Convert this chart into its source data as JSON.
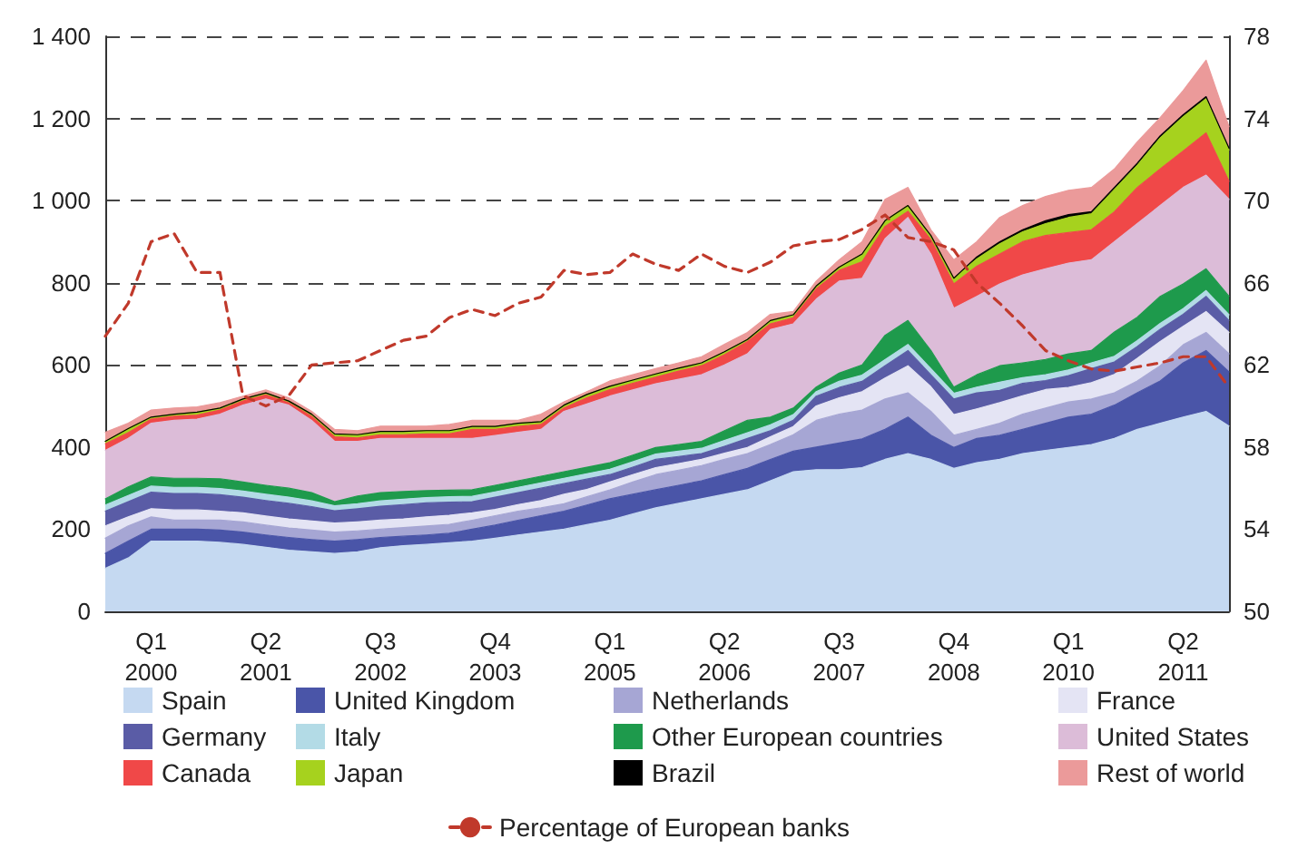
{
  "chart_data": {
    "type": "area",
    "stacked": true,
    "categories": [
      null,
      null,
      "Q1 2000",
      null,
      null,
      null,
      null,
      "Q2 2001",
      null,
      null,
      null,
      null,
      "Q3 2002",
      null,
      null,
      null,
      null,
      "Q4 2003",
      null,
      null,
      null,
      null,
      "Q1 2005",
      null,
      null,
      null,
      null,
      "Q2 2006",
      null,
      null,
      null,
      null,
      "Q3 2007",
      null,
      null,
      null,
      null,
      "Q4 2008",
      null,
      null,
      null,
      null,
      "Q1 2010",
      null,
      null,
      null,
      null,
      "Q2 2011",
      null,
      null
    ],
    "ylim": [
      0,
      1400
    ],
    "yticks": [
      0,
      200,
      400,
      600,
      800,
      {
        "value": 1000,
        "label": "1 000"
      },
      {
        "value": 1200,
        "label": "1 200"
      },
      {
        "value": 1400,
        "label": "1 400"
      }
    ],
    "y2lim": [
      50,
      78
    ],
    "y2ticks": [
      50,
      54,
      58,
      62,
      66,
      70,
      74,
      78
    ],
    "grid": "y",
    "legend": "bottom",
    "series": [
      {
        "name": "Spain",
        "color": "#c5d9f1",
        "values": [
          105,
          130,
          171,
          171,
          171,
          168,
          163,
          156,
          149,
          145,
          141,
          145,
          155,
          160,
          163,
          167,
          171,
          178,
          186,
          193,
          200,
          211,
          222,
          237,
          252,
          263,
          274,
          285,
          296,
          318,
          340,
          345,
          345,
          350,
          370,
          384,
          370,
          348,
          362,
          370,
          384,
          392,
          399,
          406,
          421,
          443,
          458,
          473,
          487,
          451
        ]
      },
      {
        "name": "United Kingdom",
        "color": "#4a55a8",
        "values": [
          36,
          41,
          29,
          29,
          29,
          30,
          30,
          30,
          31,
          30,
          30,
          30,
          25,
          23,
          23,
          23,
          29,
          32,
          36,
          40,
          44,
          48,
          52,
          48,
          44,
          44,
          44,
          48,
          52,
          52,
          50,
          55,
          65,
          70,
          73,
          89,
          59,
          51,
          59,
          59,
          59,
          66,
          74,
          74,
          81,
          89,
          103,
          132,
          148,
          132
        ]
      },
      {
        "name": "Netherlands",
        "color": "#a6a6d4",
        "values": [
          37,
          37,
          30,
          22,
          22,
          24,
          25,
          24,
          23,
          23,
          22,
          21,
          20,
          21,
          22,
          22,
          22,
          23,
          22,
          19,
          18,
          20,
          22,
          30,
          37,
          37,
          37,
          37,
          36,
          36,
          40,
          65,
          70,
          70,
          74,
          59,
          58,
          30,
          22,
          29,
          37,
          37,
          37,
          37,
          30,
          29,
          37,
          44,
          44,
          44
        ]
      },
      {
        "name": "France",
        "color": "#e4e4f4",
        "values": [
          30,
          22,
          20,
          25,
          25,
          22,
          22,
          22,
          22,
          22,
          22,
          22,
          22,
          21,
          22,
          22,
          18,
          15,
          16,
          18,
          23,
          18,
          19,
          18,
          17,
          16,
          15,
          15,
          15,
          19,
          20,
          35,
          40,
          45,
          51,
          66,
          60,
          50,
          50,
          50,
          45,
          45,
          35,
          40,
          45,
          55,
          59,
          45,
          51,
          52
        ]
      },
      {
        "name": "Germany",
        "color": "#5a5ca6",
        "values": [
          36,
          37,
          40,
          40,
          40,
          40,
          38,
          38,
          38,
          35,
          30,
          32,
          34,
          35,
          34,
          32,
          27,
          30,
          29,
          30,
          26,
          25,
          18,
          18,
          20,
          17,
          14,
          17,
          22,
          15,
          15,
          24,
          25,
          25,
          30,
          37,
          29,
          38,
          39,
          30,
          30,
          22,
          29,
          34,
          30,
          29,
          30,
          29,
          37,
          29
        ]
      },
      {
        "name": "Italy",
        "color": "#b3dbe6",
        "values": [
          15,
          15,
          15,
          15,
          15,
          15,
          15,
          15,
          15,
          14,
          12,
          12,
          13,
          13,
          13,
          13,
          13,
          13,
          13,
          13,
          13,
          13,
          13,
          13,
          13,
          13,
          13,
          14,
          14,
          14,
          14,
          11,
          15,
          15,
          15,
          15,
          15,
          14,
          14,
          20,
          14,
          14,
          14,
          14,
          14,
          14,
          14,
          14,
          14,
          14
        ]
      },
      {
        "name": "Other European countries",
        "color": "#1e9a4c",
        "values": [
          15,
          21,
          22,
          22,
          22,
          24,
          22,
          22,
          22,
          20,
          10,
          19,
          20,
          19,
          17,
          16,
          16,
          16,
          16,
          16,
          16,
          16,
          16,
          16,
          16,
          16,
          17,
          24,
          30,
          19,
          16,
          11,
          20,
          25,
          59,
          58,
          44,
          15,
          30,
          40,
          36,
          37,
          39,
          30,
          59,
          57,
          66,
          60,
          53,
          45
        ]
      },
      {
        "name": "United States",
        "color": "#dcbcd8",
        "values": [
          118,
          118,
          131,
          141,
          144,
          157,
          187,
          210,
          202,
          176,
          147,
          133,
          132,
          129,
          127,
          126,
          125,
          121,
          118,
          114,
          147,
          154,
          162,
          159,
          155,
          159,
          162,
          160,
          162,
          213,
          205,
          214,
          224,
          211,
          235,
          251,
          235,
          192,
          191,
          199,
          214,
          221,
          221,
          221,
          220,
          228,
          221,
          235,
          228,
          236
        ]
      },
      {
        "name": "Canada",
        "color": "#f04848",
        "values": [
          16,
          14,
          10,
          10,
          10,
          10,
          10,
          10,
          6,
          10,
          11,
          8,
          9,
          9,
          11,
          11,
          22,
          15,
          14,
          12,
          8,
          15,
          16,
          16,
          16,
          20,
          22,
          25,
          30,
          14,
          15,
          25,
          26,
          40,
          30,
          15,
          35,
          59,
          73,
          73,
          81,
          81,
          74,
          73,
          73,
          88,
          89,
          89,
          103,
          44
        ]
      },
      {
        "name": "Japan",
        "color": "#a6d21e",
        "values": [
          6,
          10,
          5,
          5,
          7,
          5,
          5,
          5,
          4,
          5,
          7,
          8,
          8,
          8,
          8,
          8,
          7,
          7,
          8,
          7,
          7,
          8,
          8,
          8,
          8,
          7,
          7,
          7,
          5,
          8,
          7,
          7,
          8,
          19,
          14,
          14,
          10,
          14,
          18,
          25,
          24,
          29,
          37,
          39,
          54,
          54,
          76,
          83,
          83,
          76
        ]
      },
      {
        "name": "Brazil",
        "color": "#000000",
        "values": [
          0,
          0,
          0,
          0,
          0,
          0,
          0,
          0,
          0,
          0,
          0,
          0,
          0,
          0,
          0,
          0,
          0,
          0,
          0,
          0,
          0,
          0,
          0,
          0,
          0,
          0,
          0,
          0,
          0,
          0,
          0,
          0,
          0,
          0,
          0,
          0,
          0,
          0,
          5,
          5,
          5,
          7,
          7,
          5,
          5,
          5,
          5,
          5,
          5,
          5
        ]
      },
      {
        "name": "Rest of world",
        "color": "#eb9a9a",
        "values": [
          22,
          13,
          17,
          15,
          13,
          13,
          7,
          7,
          8,
          7,
          11,
          10,
          13,
          13,
          11,
          15,
          15,
          15,
          7,
          18,
          8,
          7,
          13,
          13,
          13,
          13,
          15,
          18,
          17,
          15,
          8,
          12,
          18,
          30,
          52,
          44,
          14,
          45,
          37,
          59,
          59,
          59,
          59,
          59,
          45,
          52,
          44,
          59,
          89,
          52
        ]
      },
      {
        "name": "Percentage of European banks",
        "type": "line",
        "axis": "y2",
        "color": "#c0392b",
        "line_style": "dashed",
        "marker": "none",
        "values": [
          63.4,
          65.0,
          68.0,
          68.4,
          66.5,
          66.5,
          60.5,
          60.0,
          60.5,
          62.0,
          62.1,
          62.2,
          62.7,
          63.2,
          63.4,
          64.3,
          64.7,
          64.4,
          65.0,
          65.3,
          66.6,
          66.4,
          66.5,
          67.4,
          66.9,
          66.6,
          67.4,
          66.8,
          66.5,
          67.0,
          67.8,
          68.0,
          68.1,
          68.6,
          69.3,
          68.2,
          68.0,
          67.6,
          66.0,
          65.0,
          63.9,
          62.7,
          62.2,
          61.8,
          61.7,
          61.9,
          62.1,
          62.4,
          62.4,
          60.9
        ]
      }
    ]
  }
}
